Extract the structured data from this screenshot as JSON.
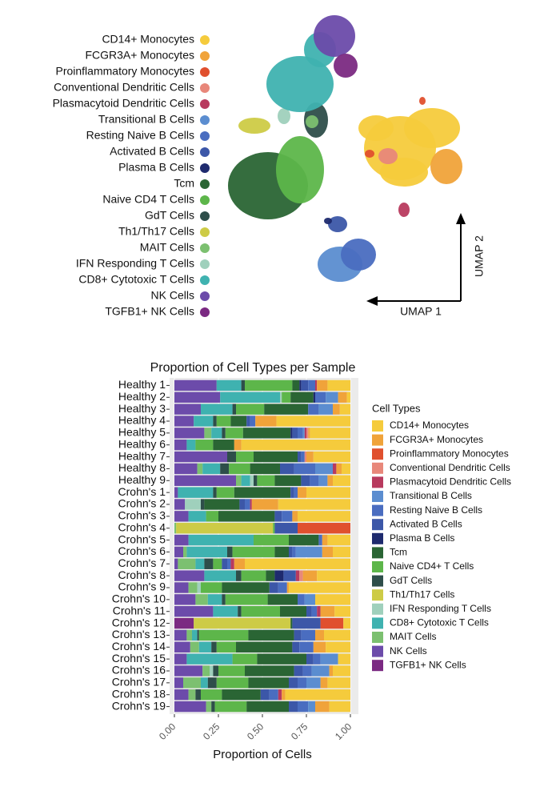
{
  "chart_data": [
    {
      "type": "scatter",
      "xlabel": "UMAP 1",
      "ylabel": "UMAP 2",
      "series": [
        {
          "name": "CD14+ Monocytes",
          "color": "#f5cb3c"
        },
        {
          "name": "FCGR3A+ Monocytes",
          "color": "#f0a33a"
        },
        {
          "name": "Proinflammatory Monocytes",
          "color": "#e0502e"
        },
        {
          "name": "Conventional Dendritic Cells",
          "color": "#e8877a"
        },
        {
          "name": "Plasmacytoid Dendritic Cells",
          "color": "#b83a5e"
        },
        {
          "name": "Transitional B Cells",
          "color": "#5b8dd0"
        },
        {
          "name": "Resting Naive B Cells",
          "color": "#4a6dc0"
        },
        {
          "name": "Activated B Cells",
          "color": "#3c57a8"
        },
        {
          "name": "Plasma B Cells",
          "color": "#1e2a6e"
        },
        {
          "name": "Tcm",
          "color": "#2a6534"
        },
        {
          "name": "Naive CD4 T Cells",
          "color": "#5db64a"
        },
        {
          "name": "GdT Cells",
          "color": "#2e4e4a"
        },
        {
          "name": "Th1/Th17 Cells",
          "color": "#cdcb46"
        },
        {
          "name": "MAIT Cells",
          "color": "#7cc070"
        },
        {
          "name": "IFN Responding T Cells",
          "color": "#9fd0bc"
        },
        {
          "name": "CD8+ Cytotoxic T Cells",
          "color": "#3fb2b0"
        },
        {
          "name": "NK Cells",
          "color": "#6c4baa"
        },
        {
          "name": "TGFB1+ NK Cells",
          "color": "#7b2a82"
        }
      ]
    },
    {
      "type": "stacked-bar-horizontal",
      "title": "Proportion of Cell Types per Sample",
      "xlabel": "Proportion of Cells",
      "legend_title": "Cell Types",
      "xlim": [
        0,
        1
      ],
      "xticks": [
        {
          "value": 0,
          "label": "0.00"
        },
        {
          "value": 0.25,
          "label": "0.25"
        },
        {
          "value": 0.5,
          "label": "0.50"
        },
        {
          "value": 0.75,
          "label": "0.75"
        },
        {
          "value": 1,
          "label": "1.00"
        }
      ],
      "grid": true,
      "categories": [
        "Healthy 1",
        "Healthy 2",
        "Healthy 3",
        "Healthy 4",
        "Healthy 5",
        "Healthy 6",
        "Healthy 7",
        "Healthy 8",
        "Healthy 9",
        "Crohn's 1",
        "Crohn's 2",
        "Crohn's 3",
        "Crohn's 4",
        "Crohn's 5",
        "Crohn's 6",
        "Crohn's 7",
        "Crohn's 8",
        "Crohn's 9",
        "Crohn's 10",
        "Crohn's 11",
        "Crohn's 12",
        "Crohn's 13",
        "Crohn's 14",
        "Crohn's 15",
        "Crohn's 16",
        "Crohn's 17",
        "Crohn's 18",
        "Crohn's 19"
      ],
      "series": [
        {
          "name": "CD14+ Monocytes",
          "color": "#f5cb3c",
          "values": [
            0.13,
            0.02,
            0.06,
            0.42,
            0.23,
            0.62,
            0.21,
            0.05,
            0.1,
            0.25,
            0.41,
            0.3,
            0,
            0.13,
            0.1,
            0.6,
            0.19,
            0.35,
            0.2,
            0.09,
            0.04,
            0.15,
            0.14,
            0.07,
            0.1,
            0.13,
            0.37,
            0.12
          ]
        },
        {
          "name": "FCGR3A+ Monocytes",
          "color": "#f0a33a",
          "values": [
            0.06,
            0.05,
            0.04,
            0.12,
            0.01,
            0.04,
            0.04,
            0.03,
            0.03,
            0.05,
            0.15,
            0.03,
            0,
            0.03,
            0.06,
            0.06,
            0.08,
            0.01,
            0,
            0.08,
            0,
            0.05,
            0.07,
            0,
            0.02,
            0.04,
            0.02,
            0.08
          ]
        },
        {
          "name": "Proinflammatory Monocytes",
          "color": "#e0502e",
          "values": [
            0,
            0,
            0,
            0,
            0,
            0,
            0,
            0,
            0,
            0,
            0,
            0,
            0.3,
            0,
            0,
            0,
            0,
            0,
            0,
            0,
            0.13,
            0,
            0,
            0,
            0,
            0,
            0,
            0
          ]
        },
        {
          "name": "Conventional Dendritic Cells",
          "color": "#e8877a",
          "values": [
            0,
            0,
            0,
            0,
            0.01,
            0,
            0.01,
            0,
            0,
            0,
            0,
            0,
            0,
            0,
            0,
            0,
            0.02,
            0,
            0,
            0,
            0,
            0,
            0,
            0,
            0,
            0,
            0,
            0
          ]
        },
        {
          "name": "Plasmacytoid Dendritic Cells",
          "color": "#b83a5e",
          "values": [
            0.01,
            0,
            0,
            0,
            0.01,
            0,
            0,
            0.02,
            0,
            0,
            0.01,
            0,
            0,
            0,
            0,
            0.02,
            0.02,
            0,
            0,
            0.02,
            0,
            0,
            0,
            0,
            0,
            0,
            0.02,
            0
          ]
        },
        {
          "name": "Transitional B Cells",
          "color": "#5b8dd0",
          "values": [
            0,
            0.07,
            0.08,
            0,
            0.01,
            0,
            0,
            0.1,
            0.05,
            0,
            0,
            0,
            0,
            0,
            0.15,
            0,
            0,
            0,
            0.06,
            0,
            0,
            0,
            0,
            0.1,
            0.1,
            0.08,
            0,
            0.04
          ]
        },
        {
          "name": "Resting Naive B Cells",
          "color": "#4a6dc0",
          "values": [
            0.04,
            0.06,
            0.06,
            0.03,
            0.03,
            0,
            0.02,
            0.12,
            0.05,
            0.02,
            0.03,
            0.06,
            0,
            0.02,
            0.02,
            0.02,
            0,
            0.05,
            0.04,
            0.03,
            0,
            0.08,
            0.08,
            0.04,
            0.05,
            0.05,
            0.05,
            0.06
          ]
        },
        {
          "name": "Activated B Cells",
          "color": "#3c57a8",
          "values": [
            0.04,
            0,
            0,
            0.02,
            0.03,
            0,
            0.02,
            0.08,
            0.05,
            0.02,
            0.03,
            0.04,
            0.13,
            0,
            0.02,
            0.03,
            0.07,
            0.05,
            0,
            0.03,
            0.16,
            0.04,
            0.04,
            0.04,
            0.05,
            0.05,
            0.05,
            0.05
          ]
        },
        {
          "name": "Plasma B Cells",
          "color": "#1e2a6e",
          "values": [
            0.01,
            0.01,
            0,
            0,
            0.01,
            0,
            0,
            0,
            0,
            0,
            0,
            0,
            0,
            0,
            0,
            0,
            0.05,
            0,
            0,
            0,
            0,
            0,
            0,
            0,
            0,
            0,
            0,
            0
          ]
        },
        {
          "name": "Tcm",
          "color": "#2a6534",
          "values": [
            0.04,
            0.13,
            0.25,
            0.09,
            0.27,
            0.12,
            0.25,
            0.17,
            0.15,
            0.32,
            0.2,
            0.32,
            0,
            0.17,
            0.08,
            0,
            0.05,
            0.27,
            0.17,
            0.15,
            0.01,
            0.26,
            0.32,
            0.28,
            0.28,
            0.23,
            0.22,
            0.24
          ]
        },
        {
          "name": "Naive CD4+ T Cells",
          "color": "#5db64a",
          "values": [
            0.27,
            0.05,
            0.16,
            0.08,
            0.1,
            0.1,
            0.1,
            0.12,
            0.1,
            0.1,
            0,
            0.07,
            0.01,
            0.2,
            0.24,
            0.05,
            0.14,
            0.12,
            0.24,
            0.22,
            0,
            0.28,
            0.11,
            0.14,
            0.15,
            0.18,
            0.12,
            0.18
          ]
        },
        {
          "name": "GdT Cells",
          "color": "#2e4e4a",
          "values": [
            0.02,
            0,
            0.02,
            0.02,
            0.02,
            0,
            0.05,
            0.05,
            0.02,
            0.02,
            0.02,
            0,
            0,
            0,
            0.03,
            0.05,
            0.03,
            0,
            0.02,
            0.02,
            0,
            0.01,
            0.03,
            0,
            0.03,
            0.05,
            0.03,
            0.02
          ]
        },
        {
          "name": "Th1/Th17 Cells",
          "color": "#cdcb46",
          "values": [
            0,
            0,
            0,
            0,
            0,
            0,
            0,
            0,
            0,
            0,
            0,
            0,
            0.55,
            0,
            0,
            0,
            0,
            0,
            0,
            0,
            0.55,
            0,
            0,
            0,
            0,
            0,
            0,
            0
          ]
        },
        {
          "name": "IFN Responding T Cells",
          "color": "#9fd0bc",
          "values": [
            0,
            0.01,
            0,
            0,
            0,
            0,
            0,
            0,
            0.02,
            0,
            0.09,
            0,
            0,
            0,
            0,
            0,
            0,
            0.02,
            0,
            0,
            0,
            0,
            0,
            0,
            0.02,
            0,
            0,
            0
          ]
        },
        {
          "name": "CD8+ Cytotoxic T Cells",
          "color": "#3fb2b0",
          "values": [
            0.14,
            0.34,
            0.18,
            0.11,
            0.06,
            0.05,
            0,
            0.1,
            0.05,
            0.2,
            0,
            0.1,
            0,
            0.37,
            0.23,
            0.05,
            0.18,
            0,
            0.08,
            0.14,
            0,
            0.03,
            0.07,
            0.26,
            0,
            0.04,
            0,
            0
          ]
        },
        {
          "name": "MAIT Cells",
          "color": "#7cc070",
          "values": [
            0,
            0,
            0,
            0,
            0.04,
            0,
            0,
            0.03,
            0.03,
            0,
            0,
            0,
            0.01,
            0,
            0.02,
            0.1,
            0,
            0.05,
            0.07,
            0,
            0,
            0.03,
            0.05,
            0,
            0.04,
            0.1,
            0.04,
            0.03
          ]
        },
        {
          "name": "NK Cells",
          "color": "#6c4baa",
          "values": [
            0.24,
            0.26,
            0.15,
            0.11,
            0.17,
            0.07,
            0.3,
            0.13,
            0.35,
            0.02,
            0.06,
            0.08,
            0,
            0.08,
            0.05,
            0.02,
            0.17,
            0.08,
            0.12,
            0.22,
            0,
            0.07,
            0.09,
            0.07,
            0.16,
            0.05,
            0.08,
            0.18
          ]
        },
        {
          "name": "TGFB1+ NK Cells",
          "color": "#7b2a82",
          "values": [
            0,
            0,
            0,
            0,
            0,
            0,
            0,
            0,
            0,
            0,
            0,
            0,
            0,
            0,
            0,
            0,
            0,
            0,
            0,
            0,
            0.11,
            0,
            0,
            0,
            0,
            0,
            0,
            0
          ]
        }
      ]
    }
  ]
}
